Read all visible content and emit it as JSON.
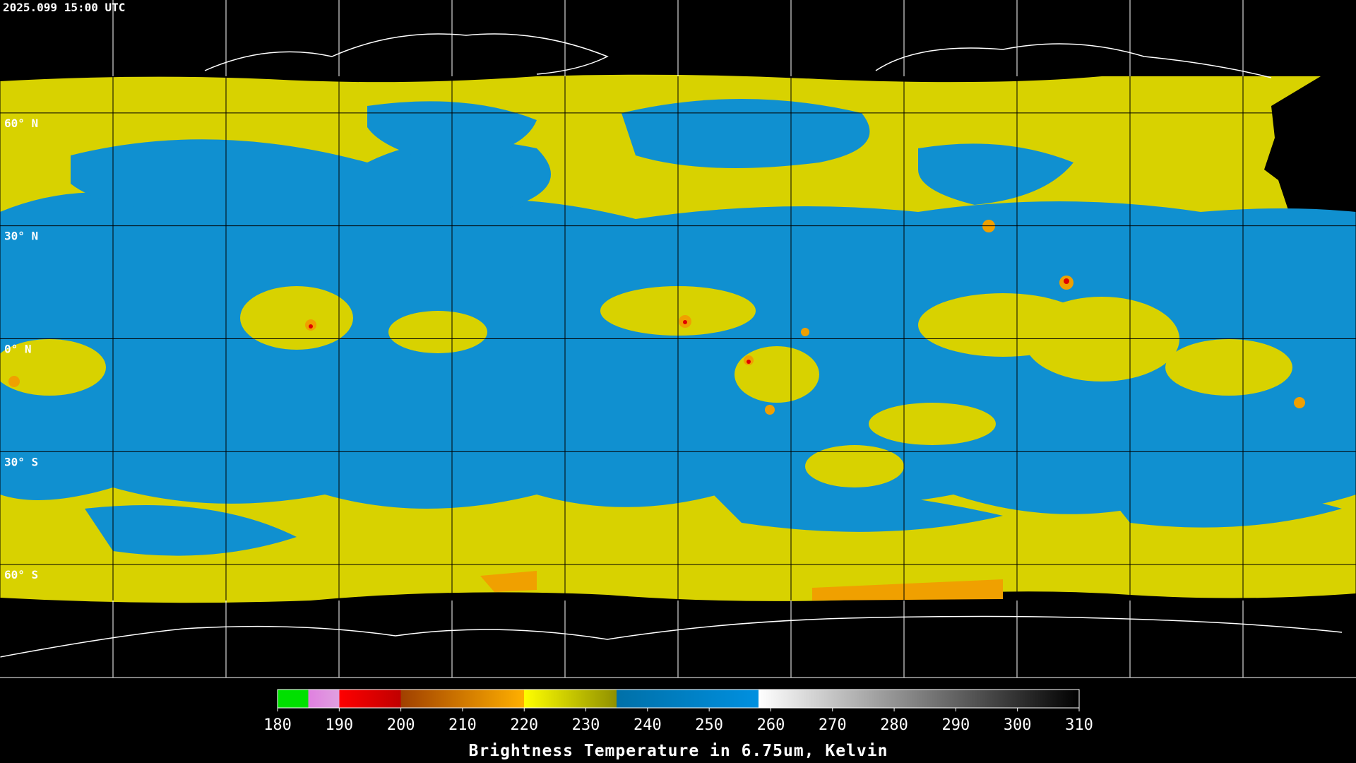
{
  "timestamp": "2025.099 15:00 UTC",
  "lat_labels": [
    "60° N",
    "30° N",
    "0° N",
    "30° S",
    "60° S"
  ],
  "colorbar": {
    "title": "Brightness Temperature in 6.75um, Kelvin",
    "range": [
      180,
      310
    ],
    "ticks": [
      180,
      190,
      200,
      210,
      220,
      230,
      240,
      250,
      260,
      270,
      280,
      290,
      300,
      310
    ],
    "stops": [
      {
        "at": 180,
        "color": "#00e000"
      },
      {
        "at": 185,
        "color": "#00e000"
      },
      {
        "at": 185,
        "color": "#e080e0"
      },
      {
        "at": 190,
        "color": "#e0a0e0"
      },
      {
        "at": 190,
        "color": "#ff0000"
      },
      {
        "at": 200,
        "color": "#c00000"
      },
      {
        "at": 200,
        "color": "#a04000"
      },
      {
        "at": 220,
        "color": "#ffb000"
      },
      {
        "at": 220,
        "color": "#ffff00"
      },
      {
        "at": 235,
        "color": "#909000"
      },
      {
        "at": 235,
        "color": "#0070a8"
      },
      {
        "at": 258,
        "color": "#0090e0"
      },
      {
        "at": 258,
        "color": "#ffffff"
      },
      {
        "at": 310,
        "color": "#000000"
      }
    ]
  }
}
